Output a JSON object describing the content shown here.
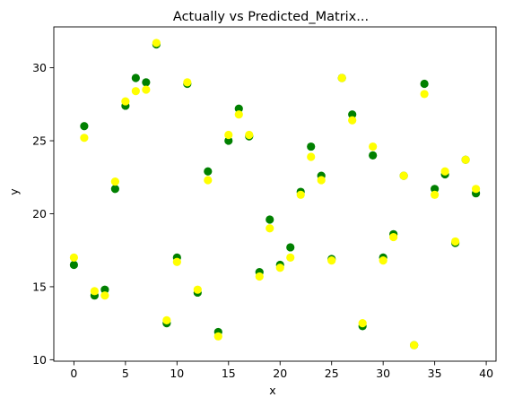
{
  "chart_data": {
    "type": "scatter",
    "title": "Actually vs Predicted_Matrix...",
    "xlabel": "x",
    "ylabel": "y",
    "xlim": [
      -1.95,
      40.95
    ],
    "ylim": [
      9.9,
      32.8
    ],
    "xticks": [
      0,
      5,
      10,
      15,
      20,
      25,
      30,
      35,
      40
    ],
    "yticks": [
      10,
      15,
      20,
      25,
      30
    ],
    "grid": false,
    "legend": "none",
    "series": [
      {
        "color": "#008000",
        "x": [
          0,
          1,
          2,
          3,
          4,
          5,
          6,
          7,
          8,
          9,
          10,
          11,
          12,
          13,
          14,
          15,
          16,
          17,
          18,
          19,
          20,
          21,
          22,
          23,
          24,
          25,
          26,
          27,
          28,
          29,
          30,
          31,
          32,
          33,
          34,
          35,
          36,
          37,
          38,
          39
        ],
        "y": [
          16.5,
          26.0,
          14.4,
          14.8,
          21.7,
          27.4,
          29.3,
          29.0,
          31.6,
          12.5,
          17.0,
          28.9,
          14.6,
          22.9,
          11.9,
          25.0,
          27.2,
          25.3,
          16.0,
          19.6,
          16.5,
          17.7,
          21.5,
          24.6,
          22.6,
          16.9,
          29.3,
          26.8,
          12.3,
          24.0,
          17.0,
          18.6,
          22.6,
          11.0,
          28.9,
          21.7,
          22.7,
          18.0,
          23.7,
          21.4
        ]
      },
      {
        "color": "#ffff00",
        "x": [
          0,
          1,
          2,
          3,
          4,
          5,
          6,
          7,
          8,
          9,
          10,
          11,
          12,
          13,
          14,
          15,
          16,
          17,
          18,
          19,
          20,
          21,
          22,
          23,
          24,
          25,
          26,
          27,
          28,
          29,
          30,
          31,
          32,
          33,
          34,
          35,
          36,
          37,
          38,
          39
        ],
        "y": [
          17.0,
          25.2,
          14.7,
          14.4,
          22.2,
          27.7,
          28.4,
          28.5,
          31.7,
          12.7,
          16.7,
          29.0,
          14.8,
          22.3,
          11.6,
          25.4,
          26.8,
          25.4,
          15.7,
          19.0,
          16.3,
          17.0,
          21.3,
          23.9,
          22.3,
          16.8,
          29.3,
          26.4,
          12.5,
          24.6,
          16.8,
          18.4,
          22.6,
          11.0,
          28.2,
          21.3,
          22.9,
          18.1,
          23.7,
          21.7
        ]
      }
    ]
  }
}
